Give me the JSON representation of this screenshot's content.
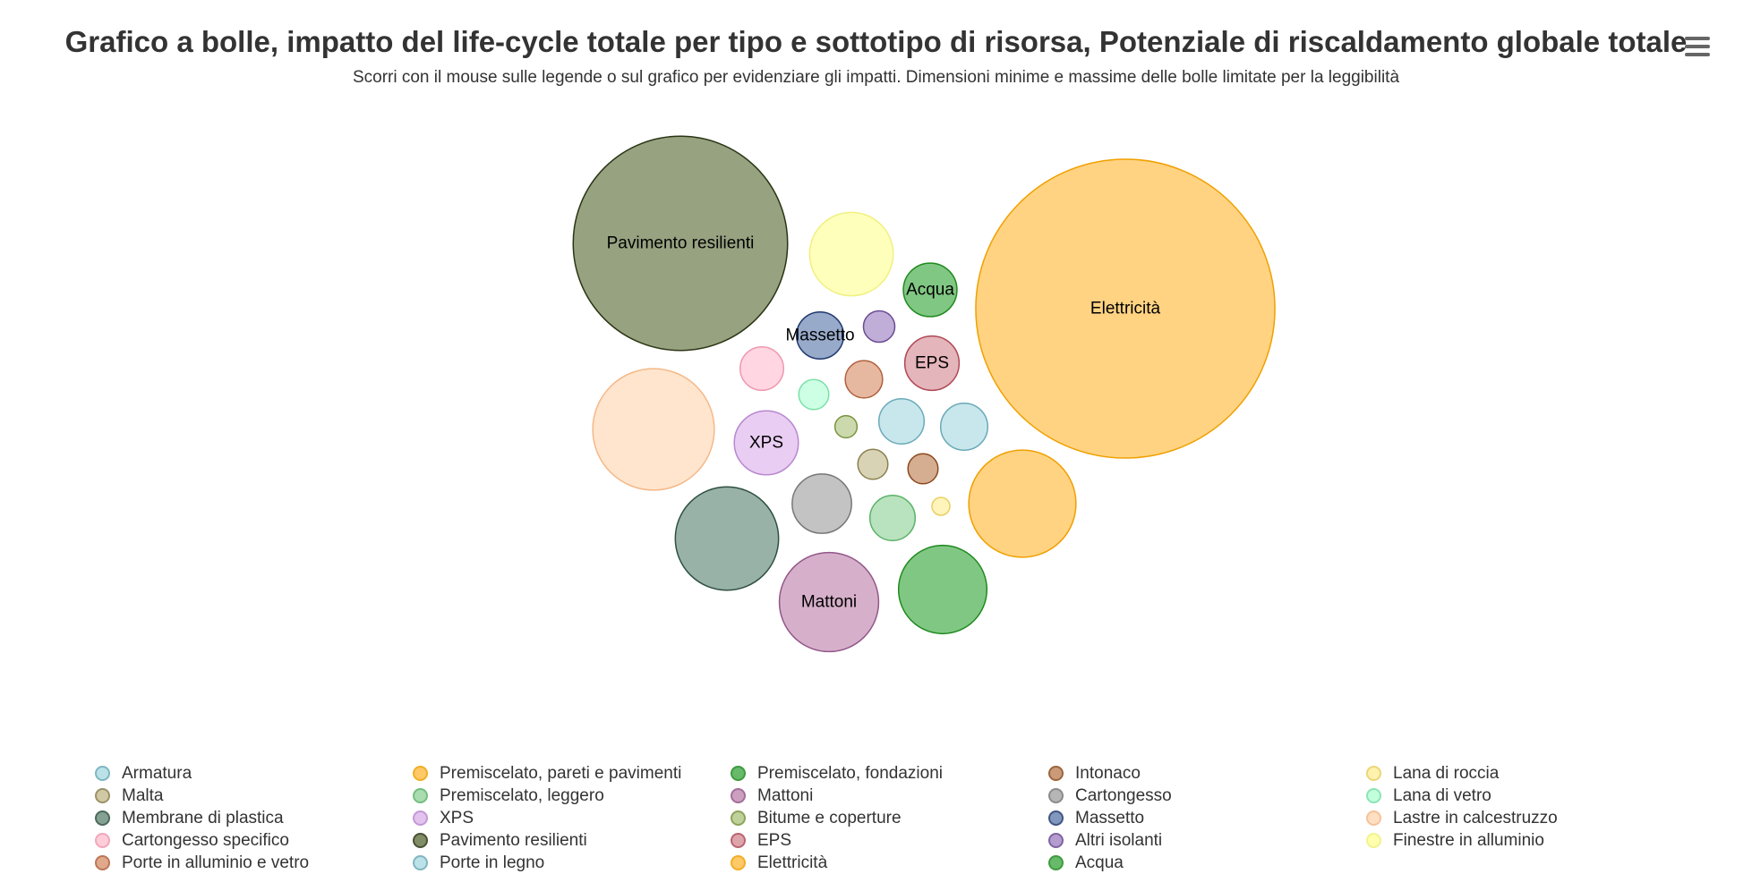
{
  "header": {
    "title": "Grafico a bolle, impatto del life-cycle totale per tipo e sottotipo di risorsa, Potenziale di riscaldamento globale totale",
    "subtitle": "Scorri con il mouse sulle legende o sul grafico per evidenziare gli impatti. Dimensioni minime e massime delle bolle limitate per la leggibilità"
  },
  "menu_icon": "hamburger-menu-icon",
  "chart_data": {
    "type": "bubble",
    "layout": "packed",
    "series": [
      {
        "name": "Armatura",
        "value": 25,
        "fill": "#b0dde4",
        "stroke": "#6aaab8",
        "label": ""
      },
      {
        "name": "Premiscelato, pareti e pavimenti",
        "value": 140,
        "fill": "#ffc04d",
        "stroke": "#f0a000",
        "label": ""
      },
      {
        "name": "Premiscelato, fondazioni",
        "value": 95,
        "fill": "#4caf50",
        "stroke": "#1e8a1e",
        "label": ""
      },
      {
        "name": "Intonaco",
        "value": 11,
        "fill": "#c38a62",
        "stroke": "#8b4a1e",
        "label": ""
      },
      {
        "name": "Lana di roccia",
        "value": 3,
        "fill": "#fff0a0",
        "stroke": "#e8d060",
        "label": ""
      },
      {
        "name": "Malta",
        "value": 11,
        "fill": "#c8c094",
        "stroke": "#8a8050",
        "label": ""
      },
      {
        "name": "Premiscelato, leggero",
        "value": 25,
        "fill": "#9bd6a2",
        "stroke": "#5cb36a",
        "label": ""
      },
      {
        "name": "Mattoni",
        "value": 120,
        "fill": "#c58fb3",
        "stroke": "#93568a",
        "label": "Mattoni"
      },
      {
        "name": "Cartongesso",
        "value": 43,
        "fill": "#aaaaaa",
        "stroke": "#777777",
        "label": ""
      },
      {
        "name": "Lana di vetro",
        "value": 11,
        "fill": "#b8ffd8",
        "stroke": "#7ae0a8",
        "label": ""
      },
      {
        "name": "Membrane di plastica",
        "value": 130,
        "fill": "#6e9282",
        "stroke": "#2e5040",
        "label": ""
      },
      {
        "name": "XPS",
        "value": 50,
        "fill": "#e0b8ec",
        "stroke": "#b888d0",
        "label": "XPS"
      },
      {
        "name": "Bitume e coperture",
        "value": 6,
        "fill": "#b5c98a",
        "stroke": "#7a9440",
        "label": ""
      },
      {
        "name": "Massetto",
        "value": 27,
        "fill": "#6b86b3",
        "stroke": "#20386e",
        "label": "Massetto"
      },
      {
        "name": "Lastre in calcestruzzo",
        "value": 180,
        "fill": "#ffdab8",
        "stroke": "#f4b888",
        "label": ""
      },
      {
        "name": "Cartongesso specifico",
        "value": 23,
        "fill": "#ffc4d4",
        "stroke": "#f098b0",
        "label": ""
      },
      {
        "name": "Pavimento resilienti",
        "value": 560,
        "fill": "#6b7a4c",
        "stroke": "#2a3514",
        "label": "Pavimento resilienti"
      },
      {
        "name": "EPS",
        "value": 36,
        "fill": "#d9959d",
        "stroke": "#b04a58",
        "label": "EPS"
      },
      {
        "name": "Altri isolanti",
        "value": 12,
        "fill": "#a78bc7",
        "stroke": "#6a4a92",
        "label": ""
      },
      {
        "name": "Finestre in alluminio",
        "value": 85,
        "fill": "#ffffa0",
        "stroke": "#f0f080",
        "label": ""
      },
      {
        "name": "Porte in alluminio e vetro",
        "value": 17,
        "fill": "#dc9a78",
        "stroke": "#b0603c",
        "label": ""
      },
      {
        "name": "Porte in legno",
        "value": 27,
        "fill": "#b0dde4",
        "stroke": "#6aaab8",
        "label": ""
      },
      {
        "name": "Elettricità",
        "value": 1090,
        "fill": "#ffc04d",
        "stroke": "#f0a000",
        "label": "Elettricità"
      },
      {
        "name": "Acqua",
        "value": 35,
        "fill": "#4caf50",
        "stroke": "#1e8a1e",
        "label": "Acqua"
      }
    ]
  },
  "legend": {
    "items": [
      "Armatura",
      "Premiscelato, pareti e pavimenti",
      "Premiscelato, fondazioni",
      "Intonaco",
      "Lana di roccia",
      "Malta",
      "Premiscelato, leggero",
      "Mattoni",
      "Cartongesso",
      "Lana di vetro",
      "Membrane di plastica",
      "XPS",
      "Bitume e coperture",
      "Massetto",
      "Lastre in calcestruzzo",
      "Cartongesso specifico",
      "Pavimento resilienti",
      "EPS",
      "Altri isolanti",
      "Finestre in alluminio",
      "Porte in alluminio e vetro",
      "Porte in legno",
      "Elettricità",
      "Acqua"
    ]
  }
}
